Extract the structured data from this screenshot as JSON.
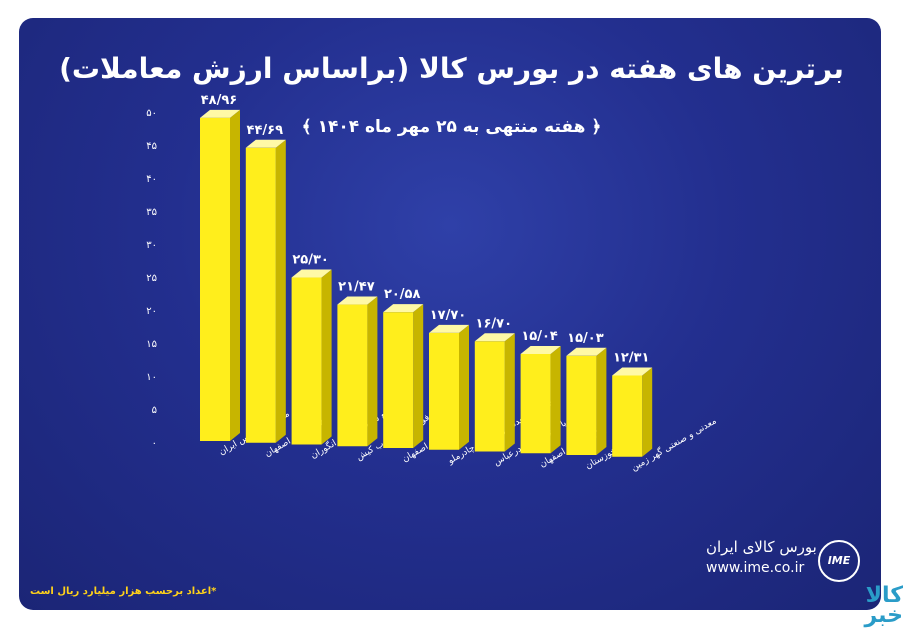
{
  "title": "برترین های هفته در بورس کالا (براساس ارزش معاملات)",
  "subtitle": "﴿ هفته منتهی به ۲۵ مهر ماه ۱۴۰۴ ﴾",
  "footnote": "*اعداد برحسب هزار میلیارد ریال است",
  "logo": {
    "name": "بورس کالای ایران",
    "url": "www.ime.co.ir",
    "mark": "IME"
  },
  "watermark": "کالا خبر",
  "colors": {
    "background": "#232f8f",
    "bar_front": "#ffee1c",
    "bar_side": "#c7b500",
    "bar_top": "#fff9a6",
    "text": "#ffffff"
  },
  "chart_data": {
    "type": "bar",
    "title": "برترین های هفته در بورس کالا (براساس ارزش معاملات)",
    "categories": [
      "ملی صنایع مس ایران",
      "فولاد مبارکه اصفهان",
      "مجتمع سرب و روی انگوران",
      "فولاد کاوه جنوب کیش",
      "ذوب آهن اصفهان",
      "شرکت معدنی و صنعتی چادرملو",
      "پالایش نفت بندرعباس",
      "پالایش نفت اصفهان",
      "فولاد خوزستان",
      "معدنی و صنعتی گهر زمین"
    ],
    "values": [
      48.96,
      44.69,
      25.3,
      21.47,
      20.58,
      17.7,
      16.7,
      15.04,
      15.03,
      12.31
    ],
    "value_labels": [
      "۴۸/۹۶",
      "۴۴/۶۹",
      "۲۵/۳۰",
      "۲۱/۴۷",
      "۲۰/۵۸",
      "۱۷/۷۰",
      "۱۶/۷۰",
      "۱۵/۰۴",
      "۱۵/۰۳",
      "۱۲/۳۱"
    ],
    "y_ticks": [
      0,
      5,
      10,
      15,
      20,
      25,
      30,
      35,
      40,
      45,
      50
    ],
    "y_tick_labels": [
      "۰",
      "۵",
      "۱۰",
      "۱۵",
      "۲۰",
      "۲۵",
      "۳۰",
      "۳۵",
      "۴۰",
      "۴۵",
      "۵۰"
    ],
    "ylim": [
      0,
      50
    ],
    "xlabel": "",
    "ylabel": "",
    "grid": false,
    "legend": false
  }
}
